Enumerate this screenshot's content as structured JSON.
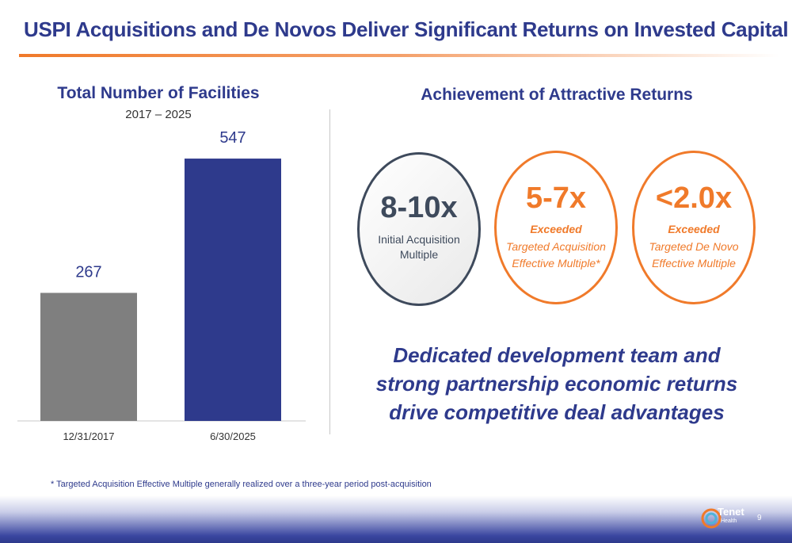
{
  "header": {
    "title": "USPI Acquisitions and De Novos Deliver Significant Returns on Invested Capital"
  },
  "chart_data": {
    "type": "bar",
    "title": "Total Number of Facilities",
    "subtitle": "2017 – 2025",
    "categories": [
      "12/31/2017",
      "6/30/2025"
    ],
    "values": [
      267,
      547
    ],
    "value_labels": [
      "267",
      "547"
    ],
    "bar_colors": [
      "#7f7f7f",
      "#2e3a8c"
    ],
    "ylim": [
      0,
      600
    ],
    "grid": false,
    "legend": "none"
  },
  "returns": {
    "title": "Achievement of Attractive Returns",
    "circles": [
      {
        "value": "8-10x",
        "label": "Initial Acquisition Multiple",
        "line1": "Initial Acquisition",
        "line2": "Multiple",
        "color": "#3e4a5c"
      },
      {
        "value": "5-7x",
        "status": "Exceeded",
        "line1": "Targeted Acquisition",
        "line2": "Effective Multiple*",
        "color": "#f07a2a"
      },
      {
        "value": "<2.0x",
        "status": "Exceeded",
        "line1": "Targeted De Novo",
        "line2": "Effective Multiple",
        "color": "#f07a2a"
      }
    ]
  },
  "tagline": {
    "line1": "Dedicated development team and",
    "line2": "strong partnership economic returns",
    "line3": "drive competitive deal advantages"
  },
  "footnote": "* Targeted Acquisition Effective Multiple generally realized over a three-year period post-acquisition",
  "footer": {
    "logo_name": "Tenet",
    "logo_sub": "Health",
    "page_number": "9"
  },
  "colors": {
    "brand_blue": "#2e3a8c",
    "accent_orange": "#f07a2a",
    "dark_slate": "#3e4a5c"
  }
}
